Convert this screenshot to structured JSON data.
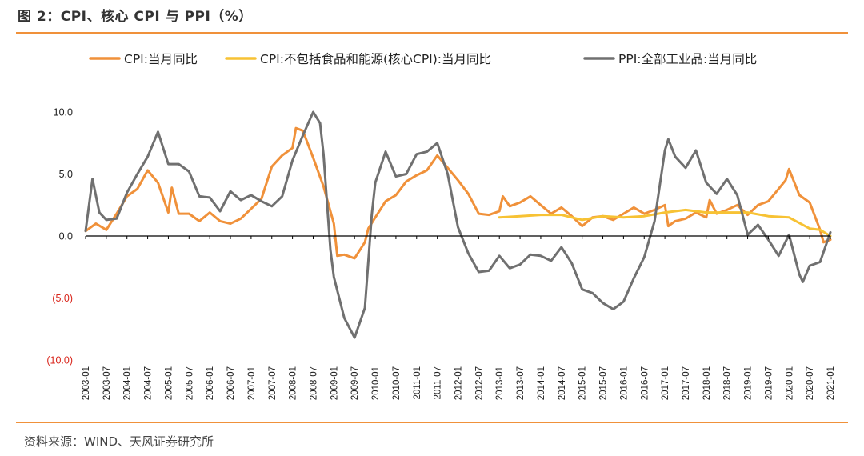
{
  "title": "图 2：CPI、核心 CPI 与 PPI（%）",
  "source": "资料来源：WIND、天风证券研究所",
  "colors": {
    "accent": "#f0913a",
    "cpi": "#f0913a",
    "core": "#f7c234",
    "ppi": "#707070",
    "negative_tick": "#d9261c"
  },
  "chart_data": {
    "type": "line",
    "title": "",
    "xlabel": "",
    "ylabel": "",
    "ylim": [
      -10,
      10
    ],
    "y_ticks": [
      {
        "value": 10,
        "label": "10.0"
      },
      {
        "value": 5,
        "label": "5.0"
      },
      {
        "value": 0,
        "label": "0.0"
      },
      {
        "value": -5,
        "label": "(5.0)"
      },
      {
        "value": -10,
        "label": "(10.0)"
      }
    ],
    "x_tick_labels": [
      "2003-01",
      "2003-07",
      "2004-01",
      "2004-07",
      "2005-01",
      "2005-07",
      "2006-01",
      "2006-07",
      "2007-01",
      "2007-07",
      "2008-01",
      "2008-07",
      "2009-01",
      "2009-07",
      "2010-01",
      "2010-07",
      "2011-01",
      "2011-07",
      "2012-01",
      "2012-07",
      "2013-01",
      "2013-07",
      "2014-01",
      "2014-07",
      "2015-01",
      "2015-07",
      "2016-01",
      "2016-07",
      "2017-01",
      "2017-07",
      "2018-01",
      "2018-07",
      "2019-01",
      "2019-07",
      "2020-01",
      "2020-07",
      "2021-01"
    ],
    "x_start": "2003-01",
    "x_end": "2021-01",
    "legend_position": "top",
    "series": [
      {
        "name": "CPI:当月同比",
        "points": [
          [
            "2003-01",
            0.4
          ],
          [
            "2003-04",
            1.0
          ],
          [
            "2003-07",
            0.5
          ],
          [
            "2003-10",
            1.8
          ],
          [
            "2004-01",
            3.2
          ],
          [
            "2004-04",
            3.8
          ],
          [
            "2004-07",
            5.3
          ],
          [
            "2004-10",
            4.3
          ],
          [
            "2005-01",
            1.9
          ],
          [
            "2005-02",
            3.9
          ],
          [
            "2005-04",
            1.8
          ],
          [
            "2005-07",
            1.8
          ],
          [
            "2005-10",
            1.2
          ],
          [
            "2006-01",
            1.9
          ],
          [
            "2006-04",
            1.2
          ],
          [
            "2006-07",
            1.0
          ],
          [
            "2006-10",
            1.4
          ],
          [
            "2007-01",
            2.2
          ],
          [
            "2007-04",
            3.0
          ],
          [
            "2007-07",
            5.6
          ],
          [
            "2007-10",
            6.5
          ],
          [
            "2008-01",
            7.1
          ],
          [
            "2008-02",
            8.7
          ],
          [
            "2008-04",
            8.5
          ],
          [
            "2008-07",
            6.3
          ],
          [
            "2008-10",
            4.0
          ],
          [
            "2009-01",
            1.0
          ],
          [
            "2009-02",
            -1.6
          ],
          [
            "2009-04",
            -1.5
          ],
          [
            "2009-07",
            -1.8
          ],
          [
            "2009-10",
            -0.5
          ],
          [
            "2009-11",
            0.6
          ],
          [
            "2010-01",
            1.5
          ],
          [
            "2010-04",
            2.8
          ],
          [
            "2010-07",
            3.3
          ],
          [
            "2010-10",
            4.4
          ],
          [
            "2011-01",
            4.9
          ],
          [
            "2011-04",
            5.3
          ],
          [
            "2011-07",
            6.5
          ],
          [
            "2011-10",
            5.5
          ],
          [
            "2012-01",
            4.5
          ],
          [
            "2012-04",
            3.4
          ],
          [
            "2012-07",
            1.8
          ],
          [
            "2012-10",
            1.7
          ],
          [
            "2013-01",
            2.0
          ],
          [
            "2013-02",
            3.2
          ],
          [
            "2013-04",
            2.4
          ],
          [
            "2013-07",
            2.7
          ],
          [
            "2013-10",
            3.2
          ],
          [
            "2014-01",
            2.5
          ],
          [
            "2014-04",
            1.8
          ],
          [
            "2014-07",
            2.3
          ],
          [
            "2014-10",
            1.6
          ],
          [
            "2015-01",
            0.8
          ],
          [
            "2015-04",
            1.5
          ],
          [
            "2015-07",
            1.6
          ],
          [
            "2015-10",
            1.3
          ],
          [
            "2016-01",
            1.8
          ],
          [
            "2016-04",
            2.3
          ],
          [
            "2016-07",
            1.8
          ],
          [
            "2016-10",
            2.1
          ],
          [
            "2017-01",
            2.5
          ],
          [
            "2017-02",
            0.8
          ],
          [
            "2017-04",
            1.2
          ],
          [
            "2017-07",
            1.4
          ],
          [
            "2017-10",
            1.9
          ],
          [
            "2018-01",
            1.5
          ],
          [
            "2018-02",
            2.9
          ],
          [
            "2018-04",
            1.8
          ],
          [
            "2018-07",
            2.1
          ],
          [
            "2018-10",
            2.5
          ],
          [
            "2019-01",
            1.7
          ],
          [
            "2019-04",
            2.5
          ],
          [
            "2019-07",
            2.8
          ],
          [
            "2019-10",
            3.8
          ],
          [
            "2019-12",
            4.5
          ],
          [
            "2020-01",
            5.4
          ],
          [
            "2020-04",
            3.3
          ],
          [
            "2020-07",
            2.7
          ],
          [
            "2020-10",
            0.5
          ],
          [
            "2020-11",
            -0.5
          ],
          [
            "2021-01",
            -0.3
          ]
        ]
      },
      {
        "name": "CPI:不包括食品和能源(核心CPI):当月同比",
        "points": [
          [
            "2013-01",
            1.5
          ],
          [
            "2013-07",
            1.6
          ],
          [
            "2014-01",
            1.7
          ],
          [
            "2014-07",
            1.7
          ],
          [
            "2015-01",
            1.3
          ],
          [
            "2015-07",
            1.6
          ],
          [
            "2016-01",
            1.5
          ],
          [
            "2016-07",
            1.6
          ],
          [
            "2017-01",
            1.9
          ],
          [
            "2017-07",
            2.1
          ],
          [
            "2018-01",
            1.9
          ],
          [
            "2018-07",
            1.9
          ],
          [
            "2019-01",
            1.9
          ],
          [
            "2019-07",
            1.6
          ],
          [
            "2020-01",
            1.5
          ],
          [
            "2020-07",
            0.6
          ],
          [
            "2020-10",
            0.5
          ],
          [
            "2021-01",
            0.0
          ]
        ]
      },
      {
        "name": "PPI:全部工业品:当月同比",
        "points": [
          [
            "2003-01",
            0.4
          ],
          [
            "2003-03",
            4.6
          ],
          [
            "2003-05",
            1.9
          ],
          [
            "2003-07",
            1.3
          ],
          [
            "2003-10",
            1.4
          ],
          [
            "2004-01",
            3.5
          ],
          [
            "2004-04",
            5.0
          ],
          [
            "2004-07",
            6.4
          ],
          [
            "2004-10",
            8.4
          ],
          [
            "2005-01",
            5.8
          ],
          [
            "2005-04",
            5.8
          ],
          [
            "2005-07",
            5.2
          ],
          [
            "2005-10",
            3.2
          ],
          [
            "2006-01",
            3.1
          ],
          [
            "2006-04",
            2.0
          ],
          [
            "2006-07",
            3.6
          ],
          [
            "2006-10",
            2.9
          ],
          [
            "2007-01",
            3.3
          ],
          [
            "2007-04",
            2.8
          ],
          [
            "2007-07",
            2.4
          ],
          [
            "2007-10",
            3.2
          ],
          [
            "2008-01",
            6.1
          ],
          [
            "2008-04",
            8.1
          ],
          [
            "2008-07",
            10.0
          ],
          [
            "2008-09",
            9.1
          ],
          [
            "2008-10",
            6.6
          ],
          [
            "2008-12",
            -1.1
          ],
          [
            "2009-01",
            -3.3
          ],
          [
            "2009-04",
            -6.6
          ],
          [
            "2009-07",
            -8.2
          ],
          [
            "2009-10",
            -5.8
          ],
          [
            "2009-12",
            1.7
          ],
          [
            "2010-01",
            4.3
          ],
          [
            "2010-04",
            6.8
          ],
          [
            "2010-07",
            4.8
          ],
          [
            "2010-10",
            5.0
          ],
          [
            "2011-01",
            6.6
          ],
          [
            "2011-04",
            6.8
          ],
          [
            "2011-07",
            7.5
          ],
          [
            "2011-10",
            5.0
          ],
          [
            "2012-01",
            0.7
          ],
          [
            "2012-04",
            -1.4
          ],
          [
            "2012-07",
            -2.9
          ],
          [
            "2012-10",
            -2.8
          ],
          [
            "2013-01",
            -1.6
          ],
          [
            "2013-04",
            -2.6
          ],
          [
            "2013-07",
            -2.3
          ],
          [
            "2013-10",
            -1.5
          ],
          [
            "2014-01",
            -1.6
          ],
          [
            "2014-04",
            -2.0
          ],
          [
            "2014-07",
            -0.9
          ],
          [
            "2014-10",
            -2.2
          ],
          [
            "2015-01",
            -4.3
          ],
          [
            "2015-04",
            -4.6
          ],
          [
            "2015-07",
            -5.4
          ],
          [
            "2015-10",
            -5.9
          ],
          [
            "2016-01",
            -5.3
          ],
          [
            "2016-04",
            -3.4
          ],
          [
            "2016-07",
            -1.7
          ],
          [
            "2016-10",
            1.2
          ],
          [
            "2017-01",
            6.9
          ],
          [
            "2017-02",
            7.8
          ],
          [
            "2017-04",
            6.4
          ],
          [
            "2017-07",
            5.5
          ],
          [
            "2017-10",
            6.9
          ],
          [
            "2018-01",
            4.3
          ],
          [
            "2018-04",
            3.4
          ],
          [
            "2018-07",
            4.6
          ],
          [
            "2018-10",
            3.3
          ],
          [
            "2019-01",
            0.1
          ],
          [
            "2019-04",
            0.9
          ],
          [
            "2019-07",
            -0.3
          ],
          [
            "2019-10",
            -1.6
          ],
          [
            "2020-01",
            0.1
          ],
          [
            "2020-04",
            -3.1
          ],
          [
            "2020-05",
            -3.7
          ],
          [
            "2020-07",
            -2.4
          ],
          [
            "2020-10",
            -2.1
          ],
          [
            "2021-01",
            0.3
          ]
        ]
      }
    ]
  }
}
